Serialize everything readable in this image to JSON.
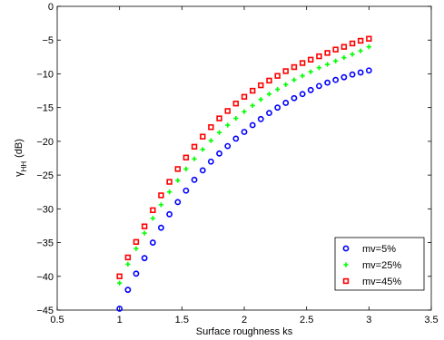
{
  "chart_data": {
    "type": "scatter",
    "title": "",
    "xlabel": "Surface roughness ks",
    "ylabel_main": "γ",
    "ylabel_sub": "HH",
    "ylabel_unit": "(dB)",
    "xlim": [
      0.5,
      3.5
    ],
    "ylim": [
      -45,
      0
    ],
    "xticks": [
      0.5,
      1,
      1.5,
      2,
      2.5,
      3,
      3.5
    ],
    "xtick_labels": [
      "0.5",
      "1",
      "1.5",
      "2",
      "2.5",
      "3",
      "3.5"
    ],
    "yticks": [
      0,
      -5,
      -10,
      -15,
      -20,
      -25,
      -30,
      -35,
      -40,
      -45
    ],
    "ytick_labels": [
      "0",
      "−5",
      "−10",
      "−15",
      "−20",
      "−25",
      "−30",
      "−35",
      "−40",
      "−45"
    ],
    "grid": false,
    "legend_position": "bottom-right",
    "x": [
      1.0,
      1.067,
      1.133,
      1.2,
      1.267,
      1.333,
      1.4,
      1.467,
      1.533,
      1.6,
      1.667,
      1.733,
      1.8,
      1.867,
      1.933,
      2.0,
      2.067,
      2.133,
      2.2,
      2.267,
      2.333,
      2.4,
      2.467,
      2.533,
      2.6,
      2.667,
      2.733,
      2.8,
      2.867,
      2.933,
      3.0
    ],
    "series": [
      {
        "name": "mv=5%",
        "marker": "circle",
        "color": "#0000ff",
        "values": [
          -44.8,
          -42.0,
          -39.6,
          -37.3,
          -35.0,
          -32.8,
          -30.8,
          -29.0,
          -27.3,
          -25.7,
          -24.3,
          -23.0,
          -21.8,
          -20.7,
          -19.6,
          -18.6,
          -17.6,
          -16.7,
          -15.8,
          -15.0,
          -14.3,
          -13.6,
          -13.0,
          -12.4,
          -11.8,
          -11.3,
          -10.9,
          -10.5,
          -10.1,
          -9.8,
          -9.5
        ]
      },
      {
        "name": "mv=25%",
        "marker": "plus",
        "color": "#00ff00",
        "values": [
          -41.0,
          -38.2,
          -35.9,
          -33.6,
          -31.4,
          -29.4,
          -27.5,
          -25.8,
          -24.1,
          -22.6,
          -21.2,
          -19.9,
          -18.7,
          -17.6,
          -16.6,
          -15.6,
          -14.7,
          -13.8,
          -13.0,
          -12.3,
          -11.6,
          -10.9,
          -10.3,
          -9.7,
          -9.1,
          -8.6,
          -8.1,
          -7.6,
          -7.1,
          -6.6,
          -6.0
        ]
      },
      {
        "name": "mv=45%",
        "marker": "square",
        "color": "#ff0000",
        "values": [
          -40.0,
          -37.2,
          -34.9,
          -32.6,
          -30.2,
          -28.0,
          -26.0,
          -24.1,
          -22.4,
          -20.8,
          -19.3,
          -17.9,
          -16.6,
          -15.5,
          -14.4,
          -13.4,
          -12.5,
          -11.7,
          -11.0,
          -10.3,
          -9.6,
          -9.0,
          -8.4,
          -7.9,
          -7.4,
          -6.9,
          -6.4,
          -6.0,
          -5.5,
          -5.1,
          -4.8
        ]
      }
    ]
  }
}
